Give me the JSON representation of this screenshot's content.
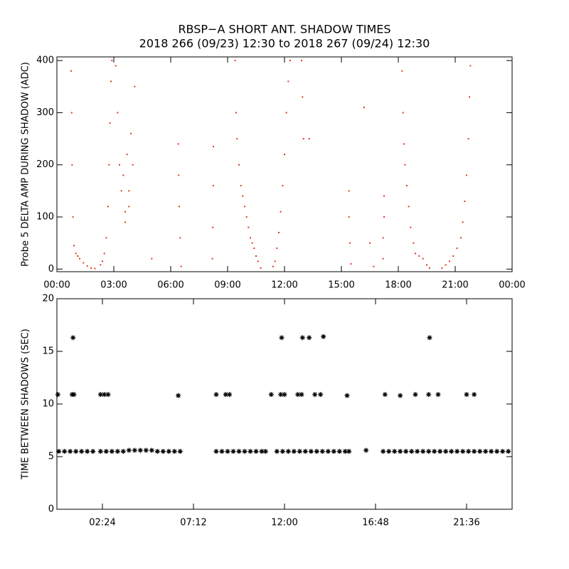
{
  "chart_data": [
    {
      "type": "scatter",
      "title": "RBSP−A SHORT ANT. SHADOW TIMES",
      "subtitle": "2018 266 (09/23) 12:30 to 2018 267 (09/24) 12:30",
      "y_label": "Probe 5 DELTA AMP DURING SHADOW (ADC)",
      "color": "#e8341c",
      "xlim": [
        0,
        24
      ],
      "ylim": [
        -5,
        407
      ],
      "xticks": [
        {
          "value": 0,
          "label": "00:00"
        },
        {
          "value": 3,
          "label": "03:00"
        },
        {
          "value": 6,
          "label": "06:00"
        },
        {
          "value": 9,
          "label": "09:00"
        },
        {
          "value": 12,
          "label": "12:00"
        },
        {
          "value": 15,
          "label": "15:00"
        },
        {
          "value": 18,
          "label": "18:00"
        },
        {
          "value": 21,
          "label": "21:00"
        },
        {
          "value": 24,
          "label": "00:00"
        }
      ],
      "yticks": [
        0,
        100,
        200,
        300,
        400
      ],
      "x": [
        0.75,
        0.78,
        0.8,
        0.85,
        0.9,
        1.0,
        1.1,
        1.2,
        1.4,
        1.6,
        1.8,
        2.0,
        2.3,
        2.4,
        2.5,
        2.6,
        2.7,
        2.75,
        2.8,
        2.85,
        2.9,
        3.1,
        3.2,
        3.3,
        3.4,
        3.5,
        3.6,
        3.7,
        3.8,
        3.9,
        4.0,
        4.1,
        3.6,
        3.8,
        5.0,
        6.4,
        6.42,
        6.45,
        6.5,
        6.55,
        8.25,
        8.25,
        8.22,
        8.2,
        9.4,
        9.45,
        9.5,
        9.6,
        9.7,
        9.8,
        9.9,
        10.0,
        10.1,
        10.2,
        10.3,
        10.4,
        10.5,
        10.6,
        10.75,
        11.4,
        11.5,
        11.6,
        11.7,
        11.8,
        11.9,
        12.0,
        12.1,
        12.2,
        12.3,
        12.9,
        12.95,
        13.0,
        13.3,
        15.4,
        15.4,
        15.45,
        15.5,
        16.2,
        16.5,
        16.7,
        17.25,
        17.25,
        17.2,
        17.2,
        18.2,
        18.25,
        18.3,
        18.35,
        18.45,
        18.55,
        18.65,
        18.8,
        18.9,
        19.1,
        19.3,
        19.5,
        19.65,
        20.3,
        20.5,
        20.7,
        20.9,
        21.1,
        21.3,
        21.4,
        21.5,
        21.6,
        21.7,
        21.75,
        21.8
      ],
      "values": [
        380,
        300,
        200,
        100,
        45,
        30,
        25,
        20,
        12,
        6,
        2,
        1,
        8,
        15,
        30,
        60,
        120,
        200,
        280,
        360,
        400,
        390,
        300,
        200,
        150,
        180,
        110,
        220,
        150,
        260,
        200,
        350,
        90,
        120,
        20,
        240,
        180,
        120,
        60,
        5,
        235,
        160,
        80,
        20,
        400,
        300,
        250,
        200,
        160,
        140,
        120,
        100,
        80,
        60,
        50,
        40,
        25,
        15,
        2,
        5,
        15,
        40,
        70,
        110,
        160,
        220,
        300,
        360,
        400,
        400,
        330,
        250,
        250,
        150,
        100,
        50,
        10,
        310,
        50,
        5,
        140,
        100,
        60,
        20,
        380,
        300,
        240,
        200,
        160,
        120,
        80,
        50,
        30,
        25,
        20,
        8,
        2,
        2,
        8,
        15,
        25,
        40,
        60,
        90,
        130,
        180,
        250,
        330,
        390
      ]
    },
    {
      "type": "scatter",
      "y_label": "TIME BETWEEN SHADOWS (SEC)",
      "color": "#000000",
      "xlim": [
        0,
        24
      ],
      "ylim": [
        0,
        20
      ],
      "xticks": [
        {
          "value": 2.4,
          "label": "02:24"
        },
        {
          "value": 7.2,
          "label": "07:12"
        },
        {
          "value": 12,
          "label": "12:00"
        },
        {
          "value": 16.8,
          "label": "16:48"
        },
        {
          "value": 21.6,
          "label": "21:36"
        }
      ],
      "yticks": [
        0,
        5,
        10,
        15,
        20
      ],
      "x": [
        0.05,
        0.8,
        0.85,
        0.9,
        2.3,
        2.5,
        2.7,
        6.4,
        8.4,
        8.9,
        9.1,
        11.3,
        11.8,
        11.85,
        12.0,
        12.7,
        12.9,
        12.95,
        13.3,
        13.6,
        13.9,
        14.05,
        15.3,
        16.3,
        17.3,
        18.1,
        18.9,
        19.6,
        19.65,
        20.1,
        21.6,
        22.0,
        0.1,
        0.4,
        0.7,
        1.0,
        1.3,
        1.6,
        1.9,
        2.3,
        2.6,
        2.9,
        3.2,
        3.5,
        3.8,
        4.1,
        4.4,
        4.7,
        5.0,
        5.3,
        5.6,
        5.9,
        6.2,
        6.5,
        8.4,
        8.7,
        9.0,
        9.3,
        9.6,
        9.9,
        10.2,
        10.5,
        10.8,
        11.0,
        11.6,
        11.9,
        12.2,
        12.5,
        12.8,
        13.1,
        13.4,
        13.7,
        14.0,
        14.3,
        14.6,
        14.9,
        15.2,
        15.4,
        17.2,
        17.5,
        17.8,
        18.1,
        18.4,
        18.7,
        19.0,
        19.3,
        19.6,
        19.9,
        20.2,
        20.5,
        20.8,
        21.1,
        21.4,
        21.7,
        22.0,
        22.3,
        22.6,
        22.9,
        23.2,
        23.5,
        23.8
      ],
      "values": [
        10.9,
        10.9,
        16.3,
        10.9,
        10.9,
        10.9,
        10.9,
        10.8,
        10.9,
        10.9,
        10.9,
        10.9,
        10.9,
        16.3,
        10.9,
        10.9,
        10.9,
        16.3,
        16.3,
        10.9,
        10.9,
        16.4,
        10.8,
        5.6,
        10.9,
        10.8,
        10.9,
        10.9,
        16.3,
        10.9,
        10.9,
        10.9,
        5.5,
        5.5,
        5.5,
        5.5,
        5.5,
        5.5,
        5.5,
        5.5,
        5.5,
        5.5,
        5.5,
        5.5,
        5.6,
        5.6,
        5.6,
        5.6,
        5.6,
        5.5,
        5.5,
        5.5,
        5.5,
        5.5,
        5.5,
        5.5,
        5.5,
        5.5,
        5.5,
        5.5,
        5.5,
        5.5,
        5.5,
        5.5,
        5.5,
        5.5,
        5.5,
        5.5,
        5.5,
        5.5,
        5.5,
        5.5,
        5.5,
        5.5,
        5.5,
        5.5,
        5.5,
        5.5,
        5.5,
        5.5,
        5.5,
        5.5,
        5.5,
        5.5,
        5.5,
        5.5,
        5.5,
        5.5,
        5.5,
        5.5,
        5.5,
        5.5,
        5.5,
        5.5,
        5.5,
        5.5,
        5.5,
        5.5,
        5.5,
        5.5,
        5.5
      ]
    }
  ]
}
